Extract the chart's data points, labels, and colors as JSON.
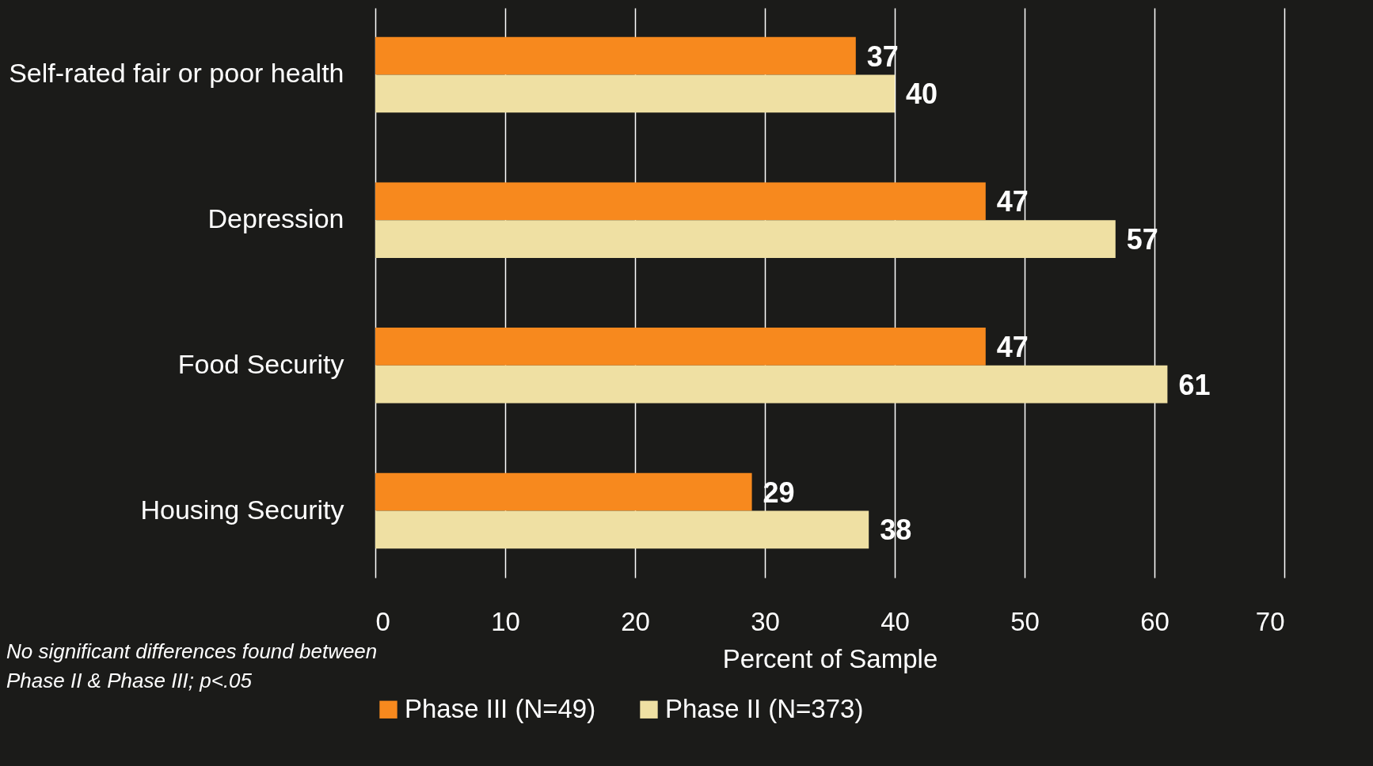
{
  "chart_data": {
    "type": "bar",
    "orientation": "horizontal",
    "categories": [
      "Self-rated fair or poor health",
      "Depression",
      "Food Security",
      "Housing Security"
    ],
    "series": [
      {
        "name": "Phase III (N=49)",
        "color": "#f7891e",
        "values": [
          37,
          47,
          47,
          29
        ]
      },
      {
        "name": "Phase II (N=373)",
        "color": "#efe0a3",
        "values": [
          40,
          57,
          61,
          38
        ]
      }
    ],
    "xlim": [
      0,
      70
    ],
    "xticks": [
      0,
      10,
      20,
      30,
      40,
      50,
      60,
      70
    ],
    "xlabel": "Percent of Sample",
    "grid": "x",
    "data_labels": true,
    "legend": "bottom",
    "annotations": [
      "No significant differences found between Phase II & Phase III; p<.05"
    ]
  }
}
